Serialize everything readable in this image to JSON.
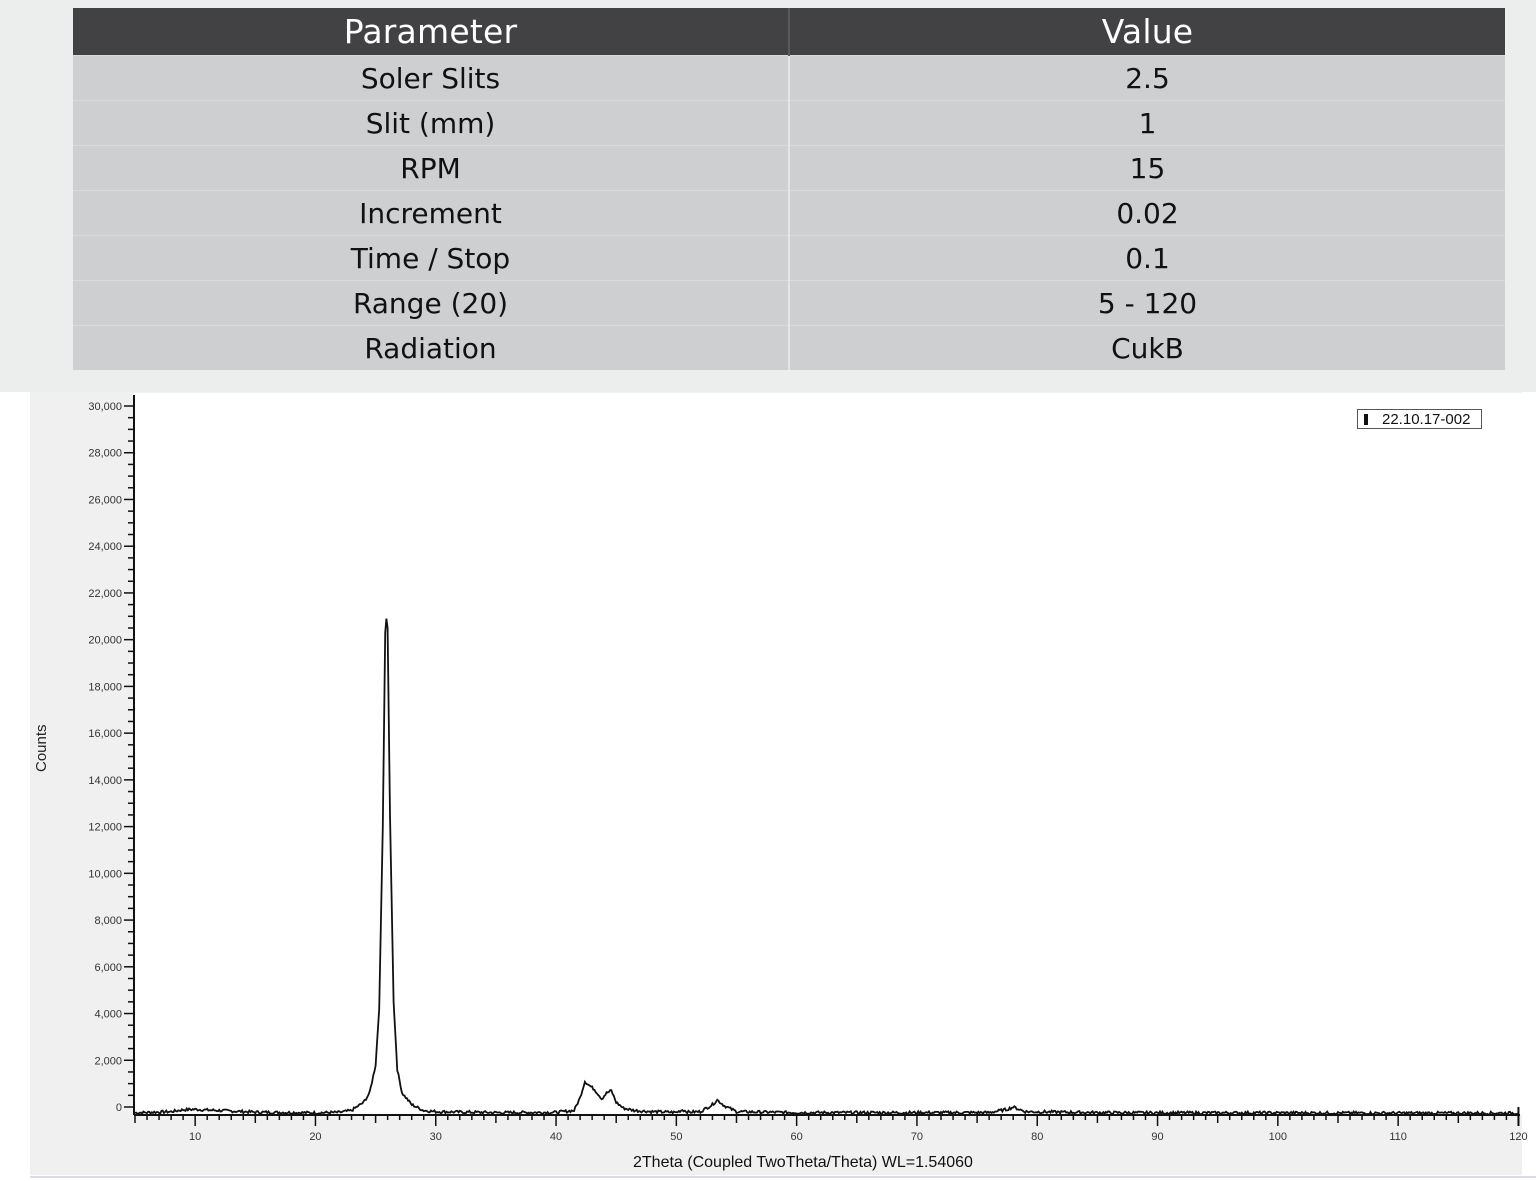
{
  "table": {
    "headers": [
      "Parameter",
      "Value"
    ],
    "rows": [
      {
        "parameter": "Soler Slits",
        "value": "2.5"
      },
      {
        "parameter": "Slit (mm)",
        "value": "1"
      },
      {
        "parameter": "RPM",
        "value": "15"
      },
      {
        "parameter": "Increment",
        "value": "0.02"
      },
      {
        "parameter": "Time / Stop",
        "value": "0.1"
      },
      {
        "parameter": "Range (20)",
        "value": "5 - 120"
      },
      {
        "parameter": "Radiation",
        "value": "CukB"
      }
    ]
  },
  "chart": {
    "ylabel": "Counts",
    "xlabel": "2Theta (Coupled TwoTheta/Theta) WL=1.54060",
    "legend_label": "22.10.17-002",
    "y_ticks": [
      "30,000",
      "28,000",
      "26,000",
      "24,000",
      "22,000",
      "20,000",
      "18,000",
      "16,000",
      "14,000",
      "12,000",
      "10,000",
      "8,000",
      "6,000",
      "4,000",
      "2,000",
      "0"
    ],
    "x_ticks": [
      "10",
      "20",
      "30",
      "40",
      "50",
      "60",
      "70",
      "80",
      "90",
      "100",
      "110",
      "120"
    ]
  },
  "chart_data": {
    "type": "line",
    "title": "",
    "xlabel": "2Theta (Coupled TwoTheta/Theta) WL=1.54060",
    "ylabel": "Counts",
    "xlim": [
      5,
      120
    ],
    "ylim": [
      -300,
      30000
    ],
    "grid": false,
    "legend_position": "top-right",
    "series": [
      {
        "name": "22.10.17-002",
        "x": [
          5,
          8,
          9,
          10,
          11,
          12,
          15,
          20,
          22,
          23,
          24,
          24.5,
          25,
          25.3,
          25.6,
          25.8,
          25.9,
          26.0,
          26.2,
          26.5,
          26.8,
          27.2,
          28,
          29,
          30,
          35,
          40,
          41.5,
          42,
          42.4,
          42.7,
          43.2,
          43.8,
          44.2,
          44.6,
          45,
          45.6,
          46.5,
          48,
          50,
          50.5,
          51,
          52,
          53,
          53.4,
          54,
          55,
          60,
          70,
          76,
          77.5,
          78,
          79,
          85,
          90,
          100,
          110,
          120
        ],
        "values": [
          -250,
          -200,
          -120,
          -100,
          -130,
          -150,
          -220,
          -250,
          -230,
          -150,
          200,
          600,
          1800,
          4200,
          12000,
          20300,
          20900,
          20500,
          12500,
          4500,
          1600,
          600,
          100,
          -150,
          -200,
          -240,
          -230,
          -150,
          400,
          1100,
          950,
          750,
          350,
          600,
          700,
          200,
          -50,
          -150,
          -200,
          -230,
          -120,
          -220,
          -200,
          100,
          300,
          50,
          -200,
          -240,
          -240,
          -240,
          -100,
          0,
          -200,
          -240,
          -250,
          -250,
          -260,
          -260
        ]
      }
    ]
  }
}
